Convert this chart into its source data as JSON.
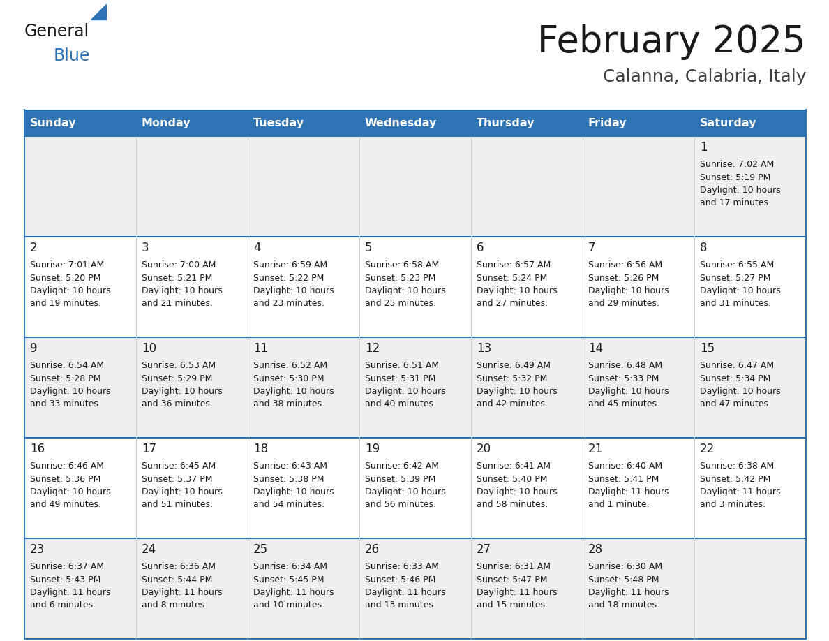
{
  "title": "February 2025",
  "subtitle": "Calanna, Calabria, Italy",
  "header_bg": "#2E74B5",
  "header_text": "#FFFFFF",
  "cell_bg_odd": "#EFEFEF",
  "cell_bg_even": "#FFFFFF",
  "border_color": "#2E74B5",
  "text_color": "#1a1a1a",
  "day_names": [
    "Sunday",
    "Monday",
    "Tuesday",
    "Wednesday",
    "Thursday",
    "Friday",
    "Saturday"
  ],
  "days": [
    {
      "day": 1,
      "col": 6,
      "row": 0,
      "sunrise": "7:02 AM",
      "sunset": "5:19 PM",
      "daylight": "10 hours and 17 minutes."
    },
    {
      "day": 2,
      "col": 0,
      "row": 1,
      "sunrise": "7:01 AM",
      "sunset": "5:20 PM",
      "daylight": "10 hours and 19 minutes."
    },
    {
      "day": 3,
      "col": 1,
      "row": 1,
      "sunrise": "7:00 AM",
      "sunset": "5:21 PM",
      "daylight": "10 hours and 21 minutes."
    },
    {
      "day": 4,
      "col": 2,
      "row": 1,
      "sunrise": "6:59 AM",
      "sunset": "5:22 PM",
      "daylight": "10 hours and 23 minutes."
    },
    {
      "day": 5,
      "col": 3,
      "row": 1,
      "sunrise": "6:58 AM",
      "sunset": "5:23 PM",
      "daylight": "10 hours and 25 minutes."
    },
    {
      "day": 6,
      "col": 4,
      "row": 1,
      "sunrise": "6:57 AM",
      "sunset": "5:24 PM",
      "daylight": "10 hours and 27 minutes."
    },
    {
      "day": 7,
      "col": 5,
      "row": 1,
      "sunrise": "6:56 AM",
      "sunset": "5:26 PM",
      "daylight": "10 hours and 29 minutes."
    },
    {
      "day": 8,
      "col": 6,
      "row": 1,
      "sunrise": "6:55 AM",
      "sunset": "5:27 PM",
      "daylight": "10 hours and 31 minutes."
    },
    {
      "day": 9,
      "col": 0,
      "row": 2,
      "sunrise": "6:54 AM",
      "sunset": "5:28 PM",
      "daylight": "10 hours and 33 minutes."
    },
    {
      "day": 10,
      "col": 1,
      "row": 2,
      "sunrise": "6:53 AM",
      "sunset": "5:29 PM",
      "daylight": "10 hours and 36 minutes."
    },
    {
      "day": 11,
      "col": 2,
      "row": 2,
      "sunrise": "6:52 AM",
      "sunset": "5:30 PM",
      "daylight": "10 hours and 38 minutes."
    },
    {
      "day": 12,
      "col": 3,
      "row": 2,
      "sunrise": "6:51 AM",
      "sunset": "5:31 PM",
      "daylight": "10 hours and 40 minutes."
    },
    {
      "day": 13,
      "col": 4,
      "row": 2,
      "sunrise": "6:49 AM",
      "sunset": "5:32 PM",
      "daylight": "10 hours and 42 minutes."
    },
    {
      "day": 14,
      "col": 5,
      "row": 2,
      "sunrise": "6:48 AM",
      "sunset": "5:33 PM",
      "daylight": "10 hours and 45 minutes."
    },
    {
      "day": 15,
      "col": 6,
      "row": 2,
      "sunrise": "6:47 AM",
      "sunset": "5:34 PM",
      "daylight": "10 hours and 47 minutes."
    },
    {
      "day": 16,
      "col": 0,
      "row": 3,
      "sunrise": "6:46 AM",
      "sunset": "5:36 PM",
      "daylight": "10 hours and 49 minutes."
    },
    {
      "day": 17,
      "col": 1,
      "row": 3,
      "sunrise": "6:45 AM",
      "sunset": "5:37 PM",
      "daylight": "10 hours and 51 minutes."
    },
    {
      "day": 18,
      "col": 2,
      "row": 3,
      "sunrise": "6:43 AM",
      "sunset": "5:38 PM",
      "daylight": "10 hours and 54 minutes."
    },
    {
      "day": 19,
      "col": 3,
      "row": 3,
      "sunrise": "6:42 AM",
      "sunset": "5:39 PM",
      "daylight": "10 hours and 56 minutes."
    },
    {
      "day": 20,
      "col": 4,
      "row": 3,
      "sunrise": "6:41 AM",
      "sunset": "5:40 PM",
      "daylight": "10 hours and 58 minutes."
    },
    {
      "day": 21,
      "col": 5,
      "row": 3,
      "sunrise": "6:40 AM",
      "sunset": "5:41 PM",
      "daylight": "11 hours and 1 minute."
    },
    {
      "day": 22,
      "col": 6,
      "row": 3,
      "sunrise": "6:38 AM",
      "sunset": "5:42 PM",
      "daylight": "11 hours and 3 minutes."
    },
    {
      "day": 23,
      "col": 0,
      "row": 4,
      "sunrise": "6:37 AM",
      "sunset": "5:43 PM",
      "daylight": "11 hours and 6 minutes."
    },
    {
      "day": 24,
      "col": 1,
      "row": 4,
      "sunrise": "6:36 AM",
      "sunset": "5:44 PM",
      "daylight": "11 hours and 8 minutes."
    },
    {
      "day": 25,
      "col": 2,
      "row": 4,
      "sunrise": "6:34 AM",
      "sunset": "5:45 PM",
      "daylight": "11 hours and 10 minutes."
    },
    {
      "day": 26,
      "col": 3,
      "row": 4,
      "sunrise": "6:33 AM",
      "sunset": "5:46 PM",
      "daylight": "11 hours and 13 minutes."
    },
    {
      "day": 27,
      "col": 4,
      "row": 4,
      "sunrise": "6:31 AM",
      "sunset": "5:47 PM",
      "daylight": "11 hours and 15 minutes."
    },
    {
      "day": 28,
      "col": 5,
      "row": 4,
      "sunrise": "6:30 AM",
      "sunset": "5:48 PM",
      "daylight": "11 hours and 18 minutes."
    }
  ]
}
